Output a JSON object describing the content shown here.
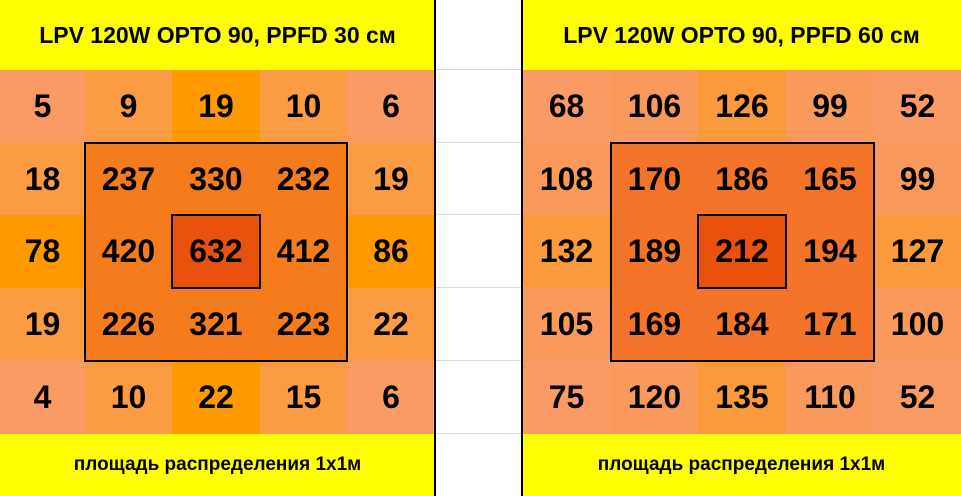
{
  "panels": [
    {
      "title": "LPV 120W OPTO 90, PPFD 30 см",
      "rows": [
        [
          5,
          9,
          19,
          10,
          6
        ],
        [
          18,
          237,
          330,
          232,
          19
        ],
        [
          78,
          420,
          632,
          412,
          86
        ],
        [
          19,
          226,
          321,
          223,
          22
        ],
        [
          4,
          10,
          22,
          15,
          6
        ]
      ],
      "footer": "площадь распределения  1х1м"
    },
    {
      "title": "LPV 120W OPTO 90, PPFD 60 см",
      "rows": [
        [
          68,
          106,
          126,
          99,
          52
        ],
        [
          108,
          170,
          186,
          165,
          99
        ],
        [
          132,
          189,
          212,
          194,
          127
        ],
        [
          105,
          169,
          184,
          171,
          100
        ],
        [
          75,
          120,
          135,
          110,
          52
        ]
      ],
      "footer": "площадь распределения  1х1м"
    }
  ]
}
